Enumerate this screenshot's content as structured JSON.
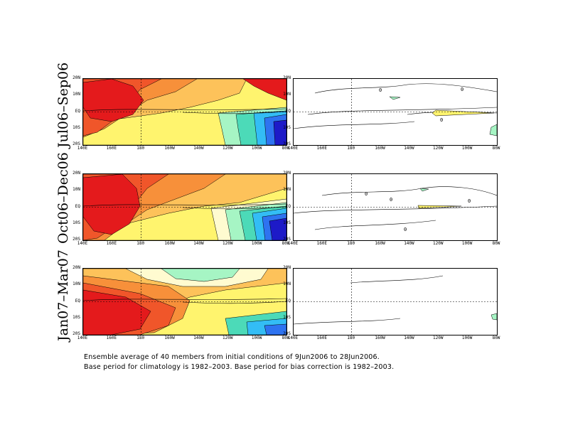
{
  "rows": [
    {
      "label": "Jul06–Sep06"
    },
    {
      "label": "Oct06–Dec06"
    },
    {
      "label": "Jan07–Mar07"
    }
  ],
  "lat_ticks": [
    "20N",
    "10N",
    "EQ",
    "10S",
    "20S"
  ],
  "lon_ticks": [
    "140E",
    "160E",
    "180",
    "160W",
    "140W",
    "120W",
    "100W",
    "80W"
  ],
  "contour_labels": {
    "zero": "0"
  },
  "colors": {
    "dark_red": "#e41a1c",
    "red_orange": "#f0562a",
    "orange": "#f7903a",
    "light_orange": "#fdc25a",
    "yellow": "#fff46e",
    "pale": "#fffbd0",
    "mint": "#a6f5c4",
    "aqua": "#4cdab8",
    "cyan": "#33bdf5",
    "blue": "#2e73f0",
    "dark_blue": "#1d1ac8"
  },
  "footer": {
    "line1": "Ensemble average of 40 members from initial conditions of 9Jun2006 to 28Jun2006.",
    "line2": "Base period for climatology is 1982–2003. Base period for bias correction is 1982–2003."
  }
}
